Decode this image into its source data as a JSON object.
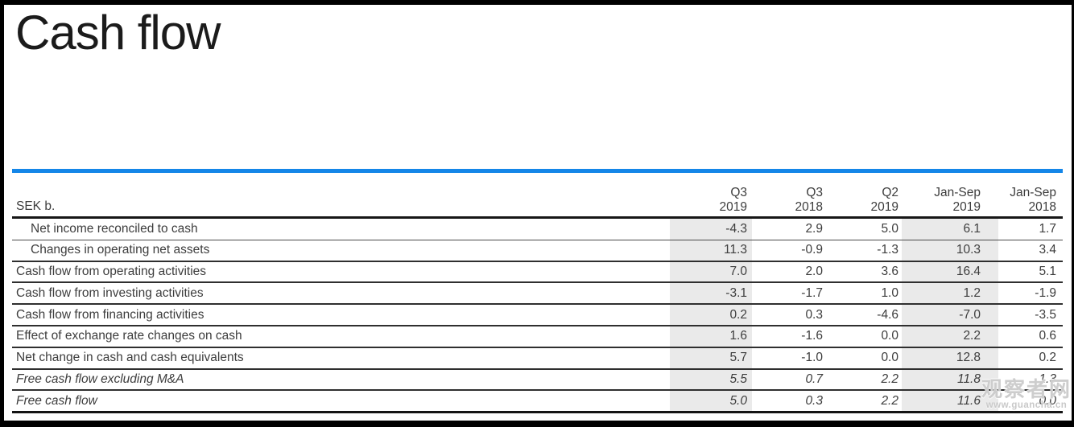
{
  "page": {
    "title": "Cash flow"
  },
  "table": {
    "unit_label": "SEK b.",
    "columns": [
      {
        "line1": "Q3",
        "line2": "2019",
        "highlighted": true
      },
      {
        "line1": "Q3",
        "line2": "2018",
        "highlighted": false
      },
      {
        "line1": "Q2",
        "line2": "2019",
        "highlighted": false
      },
      {
        "line1": "Jan-Sep",
        "line2": "2019",
        "highlighted": true
      },
      {
        "line1": "Jan-Sep",
        "line2": "2018",
        "highlighted": false
      }
    ],
    "rows": [
      {
        "label": "Net income reconciled to cash",
        "indent": true,
        "italic": false,
        "values": [
          "-4.3",
          "2.9",
          "5.0",
          "6.1",
          "1.7"
        ]
      },
      {
        "label": "Changes in operating net assets",
        "indent": true,
        "italic": false,
        "values": [
          "11.3",
          "-0.9",
          "-1.3",
          "10.3",
          "3.4"
        ]
      },
      {
        "label": "Cash flow from operating activities",
        "indent": false,
        "italic": false,
        "values": [
          "7.0",
          "2.0",
          "3.6",
          "16.4",
          "5.1"
        ]
      },
      {
        "label": "Cash flow from investing activities",
        "indent": false,
        "italic": false,
        "values": [
          "-3.1",
          "-1.7",
          "1.0",
          "1.2",
          "-1.9"
        ]
      },
      {
        "label": "Cash flow from financing activities",
        "indent": false,
        "italic": false,
        "values": [
          "0.2",
          "0.3",
          "-4.6",
          "-7.0",
          "-3.5"
        ]
      },
      {
        "label": "Effect of exchange rate changes on cash",
        "indent": false,
        "italic": false,
        "values": [
          "1.6",
          "-1.6",
          "0.0",
          "2.2",
          "0.6"
        ]
      },
      {
        "label": "Net change in cash and cash equivalents",
        "indent": false,
        "italic": false,
        "values": [
          "5.7",
          "-1.0",
          "0.0",
          "12.8",
          "0.2"
        ]
      },
      {
        "label": "Free cash flow excluding M&A",
        "indent": false,
        "italic": true,
        "values": [
          "5.5",
          "0.7",
          "2.2",
          "11.8",
          "1.3"
        ]
      },
      {
        "label": "Free cash flow",
        "indent": false,
        "italic": true,
        "values": [
          "5.0",
          "0.3",
          "2.2",
          "11.6",
          "0.0"
        ]
      }
    ]
  },
  "watermark": {
    "site_name": "观察者网",
    "site_url": "www.guancha.cn"
  },
  "colors": {
    "accent_blue": "#1486e8",
    "row_highlight": "#eaeaea",
    "text": "#3d3d3d",
    "frame": "#000000"
  }
}
